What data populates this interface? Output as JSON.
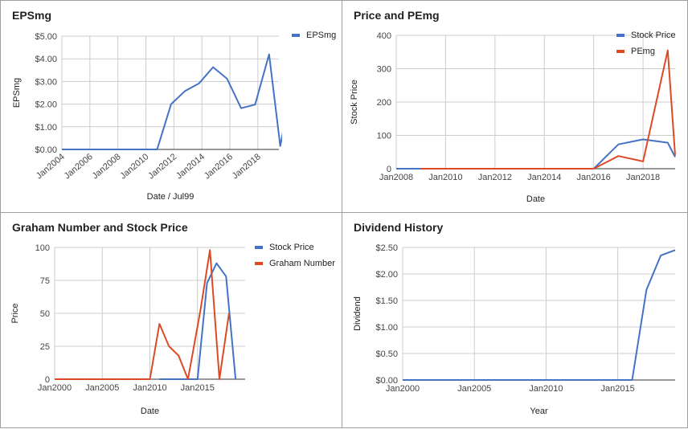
{
  "charts": [
    {
      "id": "epsmg",
      "type": "line",
      "title": "EPSmg",
      "xlabel": "Date / Jul99",
      "ylabel": "EPSmg",
      "ylim": [
        0,
        5
      ],
      "yticks": [
        0,
        1,
        2,
        3,
        4,
        5
      ],
      "ytick_labels": [
        "$0.00",
        "$1.00",
        "$2.00",
        "$3.00",
        "$4.00",
        "$5.00"
      ],
      "xlim": [
        2004,
        2019.5
      ],
      "xticks": [
        2004,
        2006,
        2008,
        2010,
        2012,
        2014,
        2016,
        2018
      ],
      "xtick_labels": [
        "Jan2004",
        "Jan2006",
        "Jan2008",
        "Jan2010",
        "Jan2012",
        "Jan2014",
        "Jan2016",
        "Jan2018"
      ],
      "xtick_rotate": true,
      "legend_position": "top-right",
      "series": [
        {
          "name": "EPSmg",
          "color": "#4472c4",
          "points": [
            [
              2004,
              0
            ],
            [
              2010.8,
              0
            ],
            [
              2011.8,
              2.0
            ],
            [
              2012.8,
              2.58
            ],
            [
              2013.8,
              2.92
            ],
            [
              2014.8,
              3.63
            ],
            [
              2015.8,
              3.12
            ],
            [
              2016.8,
              1.82
            ],
            [
              2017.8,
              1.98
            ],
            [
              2018.8,
              4.2
            ],
            [
              2019.6,
              0.15
            ],
            [
              2019.8,
              0.8
            ]
          ]
        }
      ]
    },
    {
      "id": "price-pemg",
      "type": "line",
      "title": "Price and PEmg",
      "xlabel": "Date",
      "ylabel": "Stock Price",
      "ylim": [
        0,
        400
      ],
      "yticks": [
        0,
        100,
        200,
        300,
        400
      ],
      "ytick_labels": [
        "0",
        "100",
        "200",
        "300",
        "400"
      ],
      "xlim": [
        2008,
        2019.3
      ],
      "xticks": [
        2008,
        2010,
        2012,
        2014,
        2016,
        2018
      ],
      "xtick_labels": [
        "Jan2008",
        "Jan2010",
        "Jan2012",
        "Jan2014",
        "Jan2016",
        "Jan2018"
      ],
      "xtick_rotate": false,
      "legend_position": "top-right",
      "series": [
        {
          "name": "Stock Price",
          "color": "#4472c4",
          "points": [
            [
              2008,
              0
            ],
            [
              2016,
              0
            ],
            [
              2017,
              73
            ],
            [
              2018,
              88
            ],
            [
              2019,
              78
            ],
            [
              2019.3,
              35
            ]
          ]
        },
        {
          "name": "PEmg",
          "color": "#dc4a26",
          "points": [
            [
              2009,
              0
            ],
            [
              2016,
              0
            ],
            [
              2017,
              38
            ],
            [
              2018,
              22
            ],
            [
              2019,
              355
            ],
            [
              2019.3,
              40
            ]
          ]
        }
      ]
    },
    {
      "id": "graham",
      "type": "line",
      "title": "Graham Number and Stock Price",
      "xlabel": "Date",
      "ylabel": "Price",
      "ylim": [
        0,
        100
      ],
      "yticks": [
        0,
        25,
        50,
        75,
        100
      ],
      "ytick_labels": [
        "0",
        "25",
        "50",
        "75",
        "100"
      ],
      "xlim": [
        2000,
        2020
      ],
      "xticks": [
        2000,
        2005,
        2010,
        2015
      ],
      "xtick_labels": [
        "Jan2000",
        "Jan2005",
        "Jan2010",
        "Jan2015"
      ],
      "xtick_rotate": false,
      "legend_position": "top-right",
      "series": [
        {
          "name": "Stock Price",
          "color": "#4472c4",
          "points": [
            [
              2011,
              0
            ],
            [
              2015,
              0
            ],
            [
              2016,
              73
            ],
            [
              2017,
              88
            ],
            [
              2018,
              78
            ],
            [
              2019,
              0
            ]
          ]
        },
        {
          "name": "Graham Number",
          "color": "#dc4a26",
          "points": [
            [
              2000,
              0
            ],
            [
              2010,
              0
            ],
            [
              2011,
              42
            ],
            [
              2012,
              25
            ],
            [
              2013,
              18
            ],
            [
              2014,
              0
            ],
            [
              2015.3,
              52
            ],
            [
              2016.3,
              98
            ],
            [
              2017.3,
              0
            ],
            [
              2018.3,
              50
            ]
          ]
        }
      ]
    },
    {
      "id": "dividend",
      "type": "line",
      "title": "Dividend History",
      "xlabel": "Year",
      "ylabel": "Dividend",
      "ylim": [
        0,
        2.5
      ],
      "yticks": [
        0,
        0.5,
        1,
        1.5,
        2,
        2.5
      ],
      "ytick_labels": [
        "$0.00",
        "$0.50",
        "$1.00",
        "$1.50",
        "$2.00",
        "$2.50"
      ],
      "xlim": [
        2000,
        2019
      ],
      "xticks": [
        2000,
        2005,
        2010,
        2015
      ],
      "xtick_labels": [
        "Jan2000",
        "Jan2005",
        "Jan2010",
        "Jan2015"
      ],
      "xtick_rotate": false,
      "legend_position": "none",
      "series": [
        {
          "name": "",
          "color": "#4472c4",
          "points": [
            [
              2000,
              0
            ],
            [
              2016,
              0
            ],
            [
              2017,
              1.7
            ],
            [
              2018,
              2.35
            ],
            [
              2019,
              2.45
            ]
          ]
        }
      ]
    }
  ]
}
